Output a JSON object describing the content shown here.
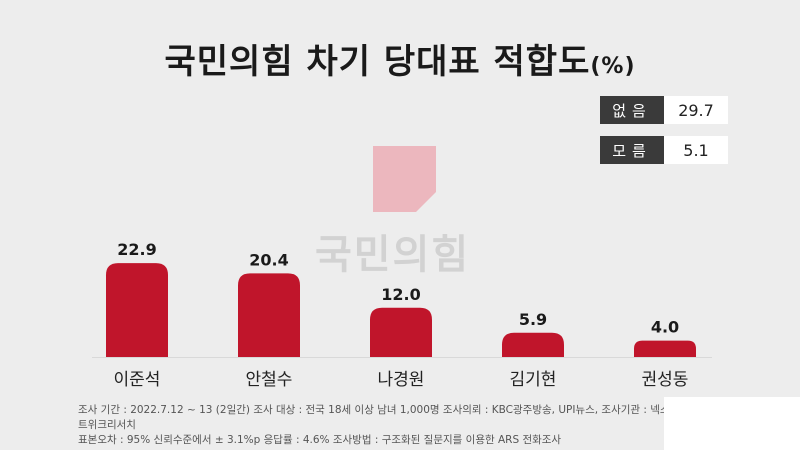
{
  "title": {
    "main": "국민의힘 차기 당대표 적합도",
    "unit": "(%)"
  },
  "others": [
    {
      "label": "없음",
      "value": "29.7"
    },
    {
      "label": "모름",
      "value": "5.1"
    }
  ],
  "watermark": {
    "text": "국민의힘",
    "color": "#e9a8b0"
  },
  "footnote": {
    "line1": "조사 기간 : 2022.7.12 ~ 13 (2일간)   조사 대상 : 전국 18세 이상 남녀 1,000명 조사의뢰 : KBC광주방송, UPI뉴스, 조사기관 : 넥스트위크리서치",
    "line2": "표본오차 : 95% 신뢰수준에서 ± 3.1%p   응답률 : 4.6%   조사방법 : 구조화된 질문지를 이용한 ARS 전화조사"
  },
  "chart_data": {
    "type": "bar",
    "categories": [
      "이준석",
      "안철수",
      "나경원",
      "김기현",
      "권성동"
    ],
    "values": [
      22.9,
      20.4,
      12.0,
      5.9,
      4.0
    ],
    "value_labels": [
      "22.9",
      "20.4",
      "12.0",
      "5.9",
      "4.0"
    ],
    "bar_color": "#c0152b",
    "title": "국민의힘 차기 당대표 적합도(%)",
    "xlabel": "",
    "ylabel": "",
    "ylim": [
      0,
      25
    ],
    "grid": false,
    "legend": "none"
  }
}
